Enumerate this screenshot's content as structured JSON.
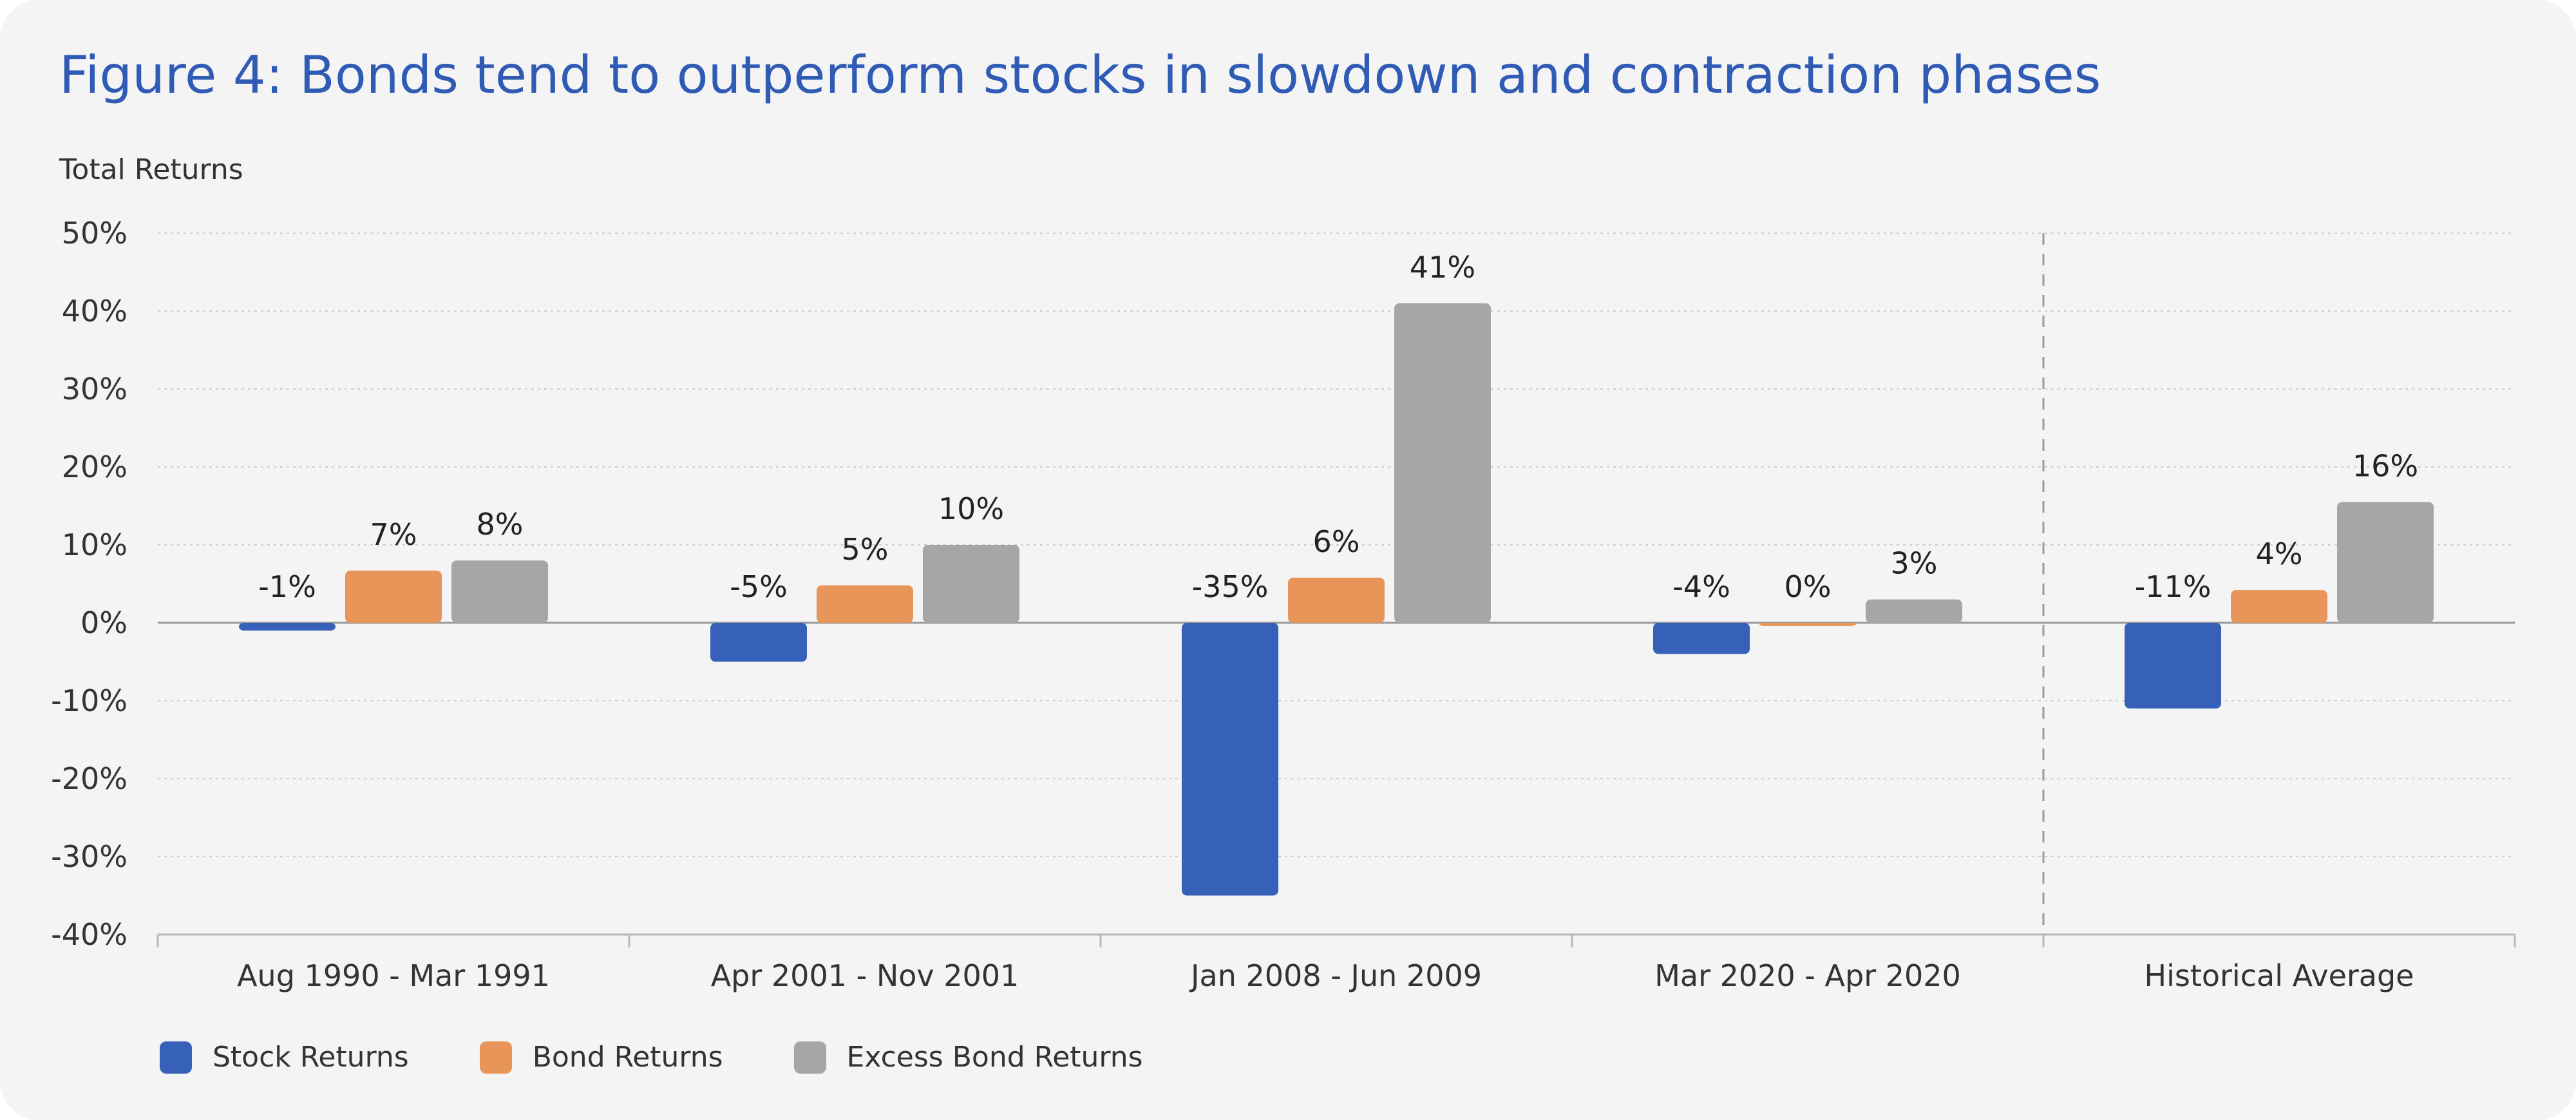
{
  "title": "Figure 4: Bonds tend to outperform stocks in slowdown and contraction phases",
  "colors": {
    "stock": "#3761b8",
    "bond": "#e8955a",
    "excess": "#a6a6a6",
    "title": "#2f5bb5"
  },
  "chart_data": {
    "type": "bar",
    "title": "Figure 4: Bonds tend to outperform stocks in slowdown and contraction phases",
    "xlabel": "",
    "ylabel": "Total Returns",
    "ylim": [
      -40,
      50
    ],
    "yticks": [
      50,
      40,
      30,
      20,
      10,
      0,
      -10,
      -20,
      -30,
      -40
    ],
    "ytick_labels": [
      "50%",
      "40%",
      "30%",
      "20%",
      "10%",
      "0%",
      "-10%",
      "-20%",
      "-30%",
      "-40%"
    ],
    "grid": true,
    "legend_position": "bottom-left",
    "separator_before_category": 4,
    "categories": [
      "Aug 1990 - Mar 1991",
      "Apr 2001 - Nov 2001",
      "Jan 2008 - Jun 2009",
      "Mar 2020 - Apr 2020",
      "Historical Average"
    ],
    "series": [
      {
        "name": "Stock Returns",
        "color": "#3761b8",
        "values": [
          -1,
          -5,
          -35,
          -4,
          -11
        ],
        "labels": [
          "-1%",
          "-5%",
          "-35%",
          "-4%",
          "-11%"
        ]
      },
      {
        "name": "Bond Returns",
        "color": "#e8955a",
        "values": [
          6.7,
          4.8,
          5.8,
          -0.4,
          4.2
        ],
        "labels": [
          "7%",
          "5%",
          "6%",
          "0%",
          "4%"
        ]
      },
      {
        "name": "Excess Bond Returns",
        "color": "#a6a6a6",
        "values": [
          8,
          10,
          41,
          3,
          15.5
        ],
        "labels": [
          "8%",
          "10%",
          "41%",
          "3%",
          "16%"
        ]
      }
    ]
  }
}
